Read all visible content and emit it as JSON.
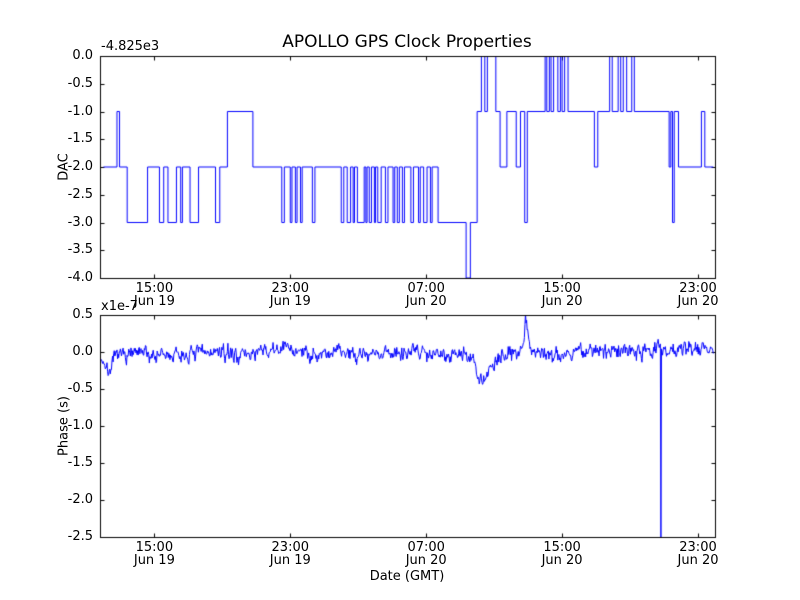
{
  "figure": {
    "background_color": "#ffffff",
    "axis_color": "#000000",
    "line_color": "#0000ff"
  },
  "chart_data": [
    {
      "type": "line",
      "style": "step-post",
      "title": "APOLLO GPS Clock Properties",
      "ylabel": "DAC",
      "offset_text": "-4.825e3",
      "xlim": [
        11.8,
        48.0
      ],
      "ylim": [
        -4.0,
        0.0
      ],
      "ytick_vals": [
        0.0,
        -0.5,
        -1.0,
        -1.5,
        -2.0,
        -2.5,
        -3.0,
        -3.5,
        -4.0
      ],
      "ytick_labels": [
        "0.0",
        "-0.5",
        "-1.0",
        "-1.5",
        "-2.0",
        "-2.5",
        "-3.0",
        "-3.5",
        "-4.0"
      ],
      "xtick_vals": [
        15,
        23,
        31,
        39,
        47
      ],
      "xtick_labels": [
        [
          "15:00",
          "Jun 19"
        ],
        [
          "23:00",
          "Jun 19"
        ],
        [
          "07:00",
          "Jun 20"
        ],
        [
          "15:00",
          "Jun 20"
        ],
        [
          "23:00",
          "Jun 20"
        ]
      ],
      "grid": false,
      "legend": null,
      "points": [
        [
          12.0,
          -2
        ],
        [
          12.8,
          -1
        ],
        [
          12.95,
          -2
        ],
        [
          13.4,
          -3
        ],
        [
          14.6,
          -2
        ],
        [
          15.3,
          -3
        ],
        [
          15.55,
          -2
        ],
        [
          15.8,
          -3
        ],
        [
          16.3,
          -2
        ],
        [
          16.55,
          -3
        ],
        [
          16.65,
          -2
        ],
        [
          17.1,
          -3
        ],
        [
          17.6,
          -2
        ],
        [
          18.6,
          -3
        ],
        [
          18.85,
          -2
        ],
        [
          19.3,
          -1
        ],
        [
          20.8,
          -2
        ],
        [
          22.5,
          -3
        ],
        [
          22.65,
          -2
        ],
        [
          23.0,
          -3
        ],
        [
          23.1,
          -2
        ],
        [
          23.3,
          -3
        ],
        [
          23.4,
          -2
        ],
        [
          23.6,
          -3
        ],
        [
          23.7,
          -2
        ],
        [
          24.3,
          -3
        ],
        [
          24.45,
          -2
        ],
        [
          26.0,
          -3
        ],
        [
          26.15,
          -2
        ],
        [
          26.35,
          -3
        ],
        [
          26.55,
          -2
        ],
        [
          26.7,
          -3
        ],
        [
          26.78,
          -2
        ],
        [
          26.95,
          -3
        ],
        [
          27.35,
          -2
        ],
        [
          27.45,
          -3
        ],
        [
          27.52,
          -2
        ],
        [
          27.65,
          -3
        ],
        [
          27.78,
          -2
        ],
        [
          27.95,
          -3
        ],
        [
          28.02,
          -2
        ],
        [
          28.15,
          -3
        ],
        [
          28.35,
          -2
        ],
        [
          28.6,
          -3
        ],
        [
          28.75,
          -2
        ],
        [
          29.05,
          -3
        ],
        [
          29.15,
          -2
        ],
        [
          29.3,
          -3
        ],
        [
          29.42,
          -2
        ],
        [
          29.6,
          -3
        ],
        [
          29.72,
          -2
        ],
        [
          30.1,
          -3
        ],
        [
          30.25,
          -2
        ],
        [
          30.55,
          -3
        ],
        [
          30.65,
          -2
        ],
        [
          30.85,
          -3
        ],
        [
          31.05,
          -2
        ],
        [
          31.25,
          -3
        ],
        [
          31.35,
          -2
        ],
        [
          31.7,
          -3
        ],
        [
          33.35,
          -4
        ],
        [
          33.6,
          -3
        ],
        [
          34.0,
          -1
        ],
        [
          34.25,
          0
        ],
        [
          34.45,
          -1
        ],
        [
          34.6,
          0
        ],
        [
          35.1,
          -1
        ],
        [
          35.35,
          -2
        ],
        [
          35.75,
          -1
        ],
        [
          36.3,
          -2
        ],
        [
          36.55,
          -1
        ],
        [
          36.8,
          -3
        ],
        [
          36.95,
          -1
        ],
        [
          38.0,
          0
        ],
        [
          38.1,
          -1
        ],
        [
          38.25,
          0
        ],
        [
          38.35,
          -1
        ],
        [
          38.5,
          0
        ],
        [
          38.75,
          -1
        ],
        [
          38.9,
          0
        ],
        [
          39.0,
          -1
        ],
        [
          39.15,
          0
        ],
        [
          39.35,
          -1
        ],
        [
          40.9,
          -2
        ],
        [
          41.1,
          -1
        ],
        [
          41.8,
          0
        ],
        [
          41.95,
          -1
        ],
        [
          42.3,
          0
        ],
        [
          42.45,
          -1
        ],
        [
          42.6,
          0
        ],
        [
          42.8,
          -1
        ],
        [
          43.1,
          0
        ],
        [
          43.25,
          -1
        ],
        [
          45.3,
          -2
        ],
        [
          45.4,
          -1
        ],
        [
          45.5,
          -3
        ],
        [
          45.6,
          -1
        ],
        [
          45.85,
          -2
        ],
        [
          47.2,
          -1
        ],
        [
          47.4,
          -2
        ],
        [
          47.9,
          -2
        ]
      ]
    },
    {
      "type": "line",
      "style": "noisy",
      "ylabel": "Phase (s)",
      "xlabel": "Date (GMT)",
      "offset_text": "x1e-7",
      "xlim": [
        11.8,
        48.0
      ],
      "ylim": [
        -2.5,
        0.5
      ],
      "ytick_vals": [
        0.5,
        0.0,
        -0.5,
        -1.0,
        -1.5,
        -2.0,
        -2.5
      ],
      "ytick_labels": [
        "0.5",
        "0.0",
        "-0.5",
        "-1.0",
        "-1.5",
        "-2.0",
        "-2.5"
      ],
      "xtick_vals": [
        15,
        23,
        31,
        39,
        47
      ],
      "xtick_labels": [
        [
          "15:00",
          "Jun 19"
        ],
        [
          "23:00",
          "Jun 19"
        ],
        [
          "07:00",
          "Jun 20"
        ],
        [
          "15:00",
          "Jun 20"
        ],
        [
          "23:00",
          "Jun 20"
        ]
      ],
      "grid": false,
      "legend": null,
      "baseline": [
        [
          11.85,
          -0.05
        ],
        [
          12.3,
          -0.28
        ],
        [
          12.8,
          -0.05
        ],
        [
          14,
          -0.02
        ],
        [
          16,
          -0.06
        ],
        [
          18,
          0.0
        ],
        [
          20,
          -0.04
        ],
        [
          22,
          0.02
        ],
        [
          23,
          0.06
        ],
        [
          24,
          -0.02
        ],
        [
          26,
          0.0
        ],
        [
          28,
          -0.03
        ],
        [
          30,
          0.02
        ],
        [
          31.5,
          0.0
        ],
        [
          33.3,
          -0.05
        ],
        [
          33.8,
          -0.12
        ],
        [
          34.1,
          -0.42
        ],
        [
          34.6,
          -0.28
        ],
        [
          35.2,
          -0.12
        ],
        [
          36.0,
          0.0
        ],
        [
          36.6,
          0.05
        ],
        [
          36.85,
          0.42
        ],
        [
          37.15,
          0.05
        ],
        [
          38.5,
          -0.05
        ],
        [
          40,
          0.02
        ],
        [
          42,
          0.0
        ],
        [
          43.5,
          0.05
        ],
        [
          45,
          0.02
        ],
        [
          46.5,
          0.05
        ],
        [
          47.9,
          0.08
        ]
      ],
      "noise_amp": 0.1,
      "noise_seed": 7,
      "n_samples": 1100,
      "spikes": [
        [
          44.82,
          -2.5
        ]
      ]
    }
  ]
}
